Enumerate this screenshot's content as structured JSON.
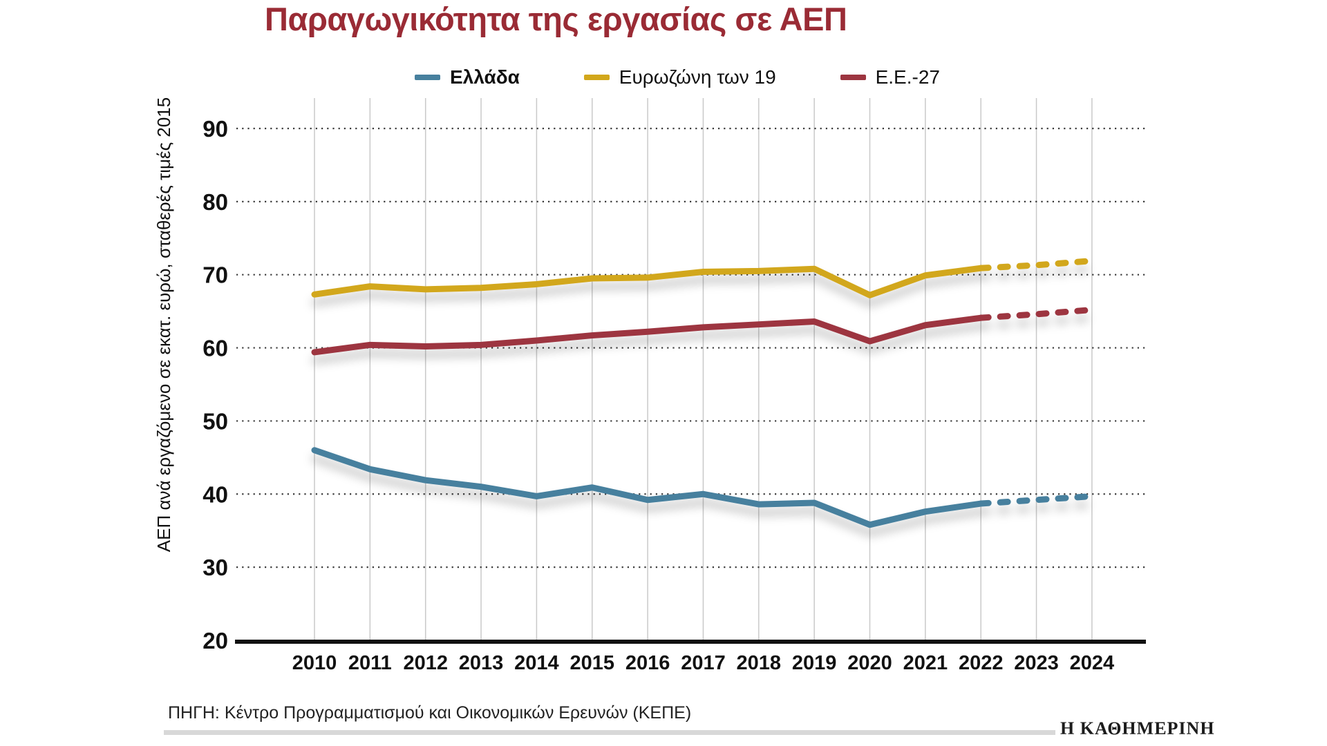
{
  "title": "Παραγωγικότητα της εργασίας σε ΑΕΠ",
  "legend": [
    {
      "label": "Ελλάδα",
      "color": "#47809E",
      "bold": true
    },
    {
      "label": "Ευρωζώνη των 19",
      "color": "#D2A71B",
      "bold": false
    },
    {
      "label": "Ε.Ε.-27",
      "color": "#9D3540",
      "bold": false
    }
  ],
  "chart_data": {
    "type": "line",
    "title": "Παραγωγικότητα της εργασίας σε ΑΕΠ",
    "ylabel": "ΑΕΠ ανά εργαζόμενο σε εκατ. ευρώ, σταθερές τιμές 2015",
    "xlabel": "",
    "x": [
      2010,
      2011,
      2012,
      2013,
      2014,
      2015,
      2016,
      2017,
      2018,
      2019,
      2020,
      2021,
      2022,
      2023,
      2024
    ],
    "series": [
      {
        "name": "Ελλάδα",
        "color": "#47809E",
        "values": [
          46.0,
          43.4,
          41.9,
          41.0,
          39.7,
          40.9,
          39.2,
          40.0,
          38.6,
          38.8,
          35.8,
          37.6,
          38.7,
          39.2,
          39.7
        ],
        "projection_from_index": 12
      },
      {
        "name": "Ευρωζώνη των 19",
        "color": "#D2A71B",
        "values": [
          67.3,
          68.4,
          68.0,
          68.2,
          68.7,
          69.5,
          69.6,
          70.4,
          70.5,
          70.8,
          67.2,
          69.9,
          70.9,
          71.3,
          71.9
        ],
        "projection_from_index": 12
      },
      {
        "name": "Ε.Ε.-27",
        "color": "#9D3540",
        "values": [
          59.4,
          60.4,
          60.2,
          60.4,
          61.0,
          61.7,
          62.2,
          62.8,
          63.2,
          63.6,
          60.9,
          63.1,
          64.1,
          64.6,
          65.2
        ],
        "projection_from_index": 12
      }
    ],
    "ylim": [
      20,
      90
    ],
    "yticks": [
      20,
      30,
      40,
      50,
      60,
      70,
      80,
      90
    ],
    "grid": "horizontal dotted, vertical solid light gray",
    "legend_position": "top",
    "note": "2023-2024 shown as dotted projection"
  },
  "footer": {
    "source": "ΠΗΓΗ:  Κέντρο Προγραμματισμού και Οικονομικών Ερευνών (ΚΕΠΕ)",
    "brand": "Η ΚΑΘΗΜΕΡΙΝΗ"
  },
  "colors": {
    "title": "#9A2B35",
    "text": "#111111",
    "vertical_grid": "#C9C9C9",
    "horizontal_grid": "#3A3A3A",
    "axis": "#111111",
    "footer_bar": "#D8D8D8"
  }
}
